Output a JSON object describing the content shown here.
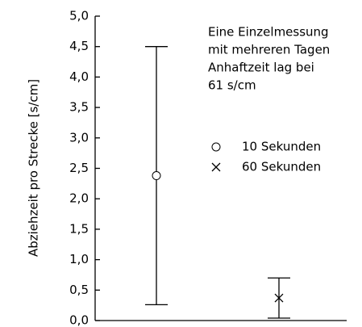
{
  "chart_data": {
    "type": "errorbar",
    "y_label": "Abziehzeit pro Strecke [s/cm]",
    "annotation": [
      "Eine Einzelmessung",
      "mit mehreren Tagen",
      "Anhaftzeit lag bei",
      "61 s/cm"
    ],
    "categories": [
      null,
      null
    ],
    "series": [
      {
        "name": "10 Sekunden",
        "marker": "circle",
        "color": "#000000",
        "values": [
          2.38,
          null
        ],
        "errors": [
          2.12,
          null
        ]
      },
      {
        "name": "60 Sekunden",
        "marker": "cross",
        "color": "#000000",
        "values": [
          null,
          0.37
        ],
        "errors": [
          null,
          0.33
        ]
      }
    ],
    "ylim": [
      0,
      5
    ],
    "yticks": [
      {
        "value": 0,
        "label": "0,0"
      },
      {
        "value": 0.5,
        "label": "0,5"
      },
      {
        "value": 1,
        "label": "1,0"
      },
      {
        "value": 1.5,
        "label": "1,5"
      },
      {
        "value": 2,
        "label": "2,0"
      },
      {
        "value": 2.5,
        "label": "2,5"
      },
      {
        "value": 3,
        "label": "3,0"
      },
      {
        "value": 3.5,
        "label": "3,5"
      },
      {
        "value": 4,
        "label": "4,0"
      },
      {
        "value": 4.5,
        "label": "4,5"
      },
      {
        "value": 5,
        "label": "5,0"
      }
    ],
    "grid": false
  }
}
